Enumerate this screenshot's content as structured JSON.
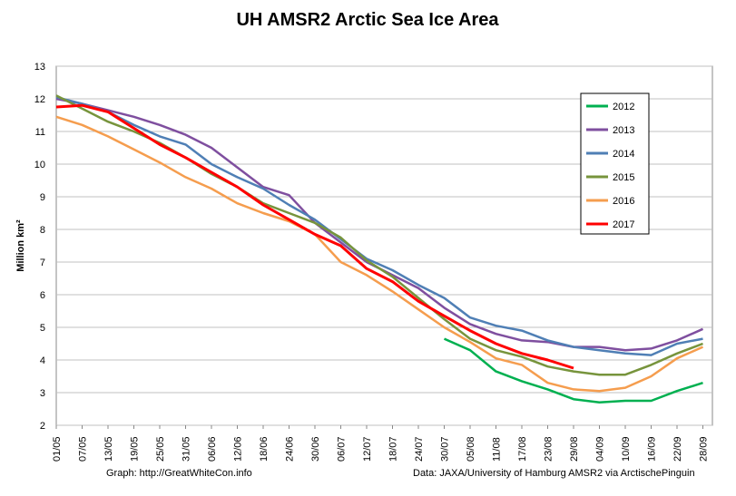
{
  "chart_data": {
    "type": "line",
    "title": "UH AMSR2 Arctic Sea Ice Area",
    "y_label": "Million km²",
    "footer_left": "Graph: http://GreatWhiteCon.info",
    "footer_right": "Data: JAXA/University of Hamburg AMSR2 via ArctischePinguin",
    "categories": [
      "01/05",
      "07/05",
      "13/05",
      "19/05",
      "25/05",
      "31/05",
      "06/06",
      "12/06",
      "18/06",
      "24/06",
      "30/06",
      "06/07",
      "12/07",
      "18/07",
      "24/07",
      "30/07",
      "05/08",
      "11/08",
      "17/08",
      "23/08",
      "29/08",
      "04/09",
      "10/09",
      "16/09",
      "22/09",
      "28/09"
    ],
    "ylim": [
      2,
      13
    ],
    "yticks": [
      2,
      3,
      4,
      5,
      6,
      7,
      8,
      9,
      10,
      11,
      12,
      13
    ],
    "grid": true,
    "legend": "right",
    "series": [
      {
        "name": "2012",
        "color": "#00b050",
        "values": [
          null,
          null,
          null,
          null,
          null,
          null,
          null,
          null,
          null,
          null,
          null,
          null,
          null,
          null,
          null,
          4.65,
          4.3,
          3.65,
          3.35,
          3.1,
          2.8,
          2.7,
          2.75,
          2.75,
          3.05,
          3.3
        ]
      },
      {
        "name": "2013",
        "color": "#7f4f9f",
        "values": [
          12.0,
          11.85,
          11.65,
          11.45,
          11.2,
          10.9,
          10.5,
          9.9,
          9.3,
          9.05,
          8.2,
          7.6,
          7.0,
          6.6,
          6.2,
          5.6,
          5.1,
          4.8,
          4.6,
          4.55,
          4.4,
          4.4,
          4.3,
          4.35,
          4.6,
          4.95
        ]
      },
      {
        "name": "2014",
        "color": "#4f7fb5",
        "values": [
          12.05,
          11.85,
          11.6,
          11.2,
          10.85,
          10.6,
          10.0,
          9.6,
          9.25,
          8.75,
          8.3,
          7.7,
          7.1,
          6.75,
          6.3,
          5.9,
          5.3,
          5.05,
          4.9,
          4.6,
          4.4,
          4.3,
          4.2,
          4.15,
          4.5,
          4.65
        ]
      },
      {
        "name": "2015",
        "color": "#77943c",
        "values": [
          12.1,
          11.7,
          11.3,
          11.0,
          10.65,
          10.2,
          9.7,
          9.3,
          8.8,
          8.5,
          8.2,
          7.75,
          7.05,
          6.55,
          5.9,
          5.25,
          4.65,
          4.3,
          4.1,
          3.8,
          3.65,
          3.55,
          3.55,
          3.85,
          4.2,
          4.5
        ]
      },
      {
        "name": "2016",
        "color": "#f59d4e",
        "values": [
          11.45,
          11.2,
          10.85,
          10.45,
          10.05,
          9.6,
          9.25,
          8.8,
          8.5,
          8.25,
          7.85,
          7.0,
          6.6,
          6.1,
          5.55,
          5.0,
          4.55,
          4.05,
          3.85,
          3.3,
          3.1,
          3.05,
          3.15,
          3.5,
          4.05,
          4.4
        ]
      },
      {
        "name": "2017",
        "color": "#ff0000",
        "values": [
          11.75,
          11.8,
          11.6,
          11.1,
          10.6,
          10.2,
          9.75,
          9.3,
          8.75,
          8.3,
          7.85,
          7.5,
          6.8,
          6.4,
          5.8,
          5.35,
          4.9,
          4.5,
          4.2,
          4.0,
          3.75,
          null,
          null,
          null,
          null,
          null
        ]
      }
    ]
  }
}
